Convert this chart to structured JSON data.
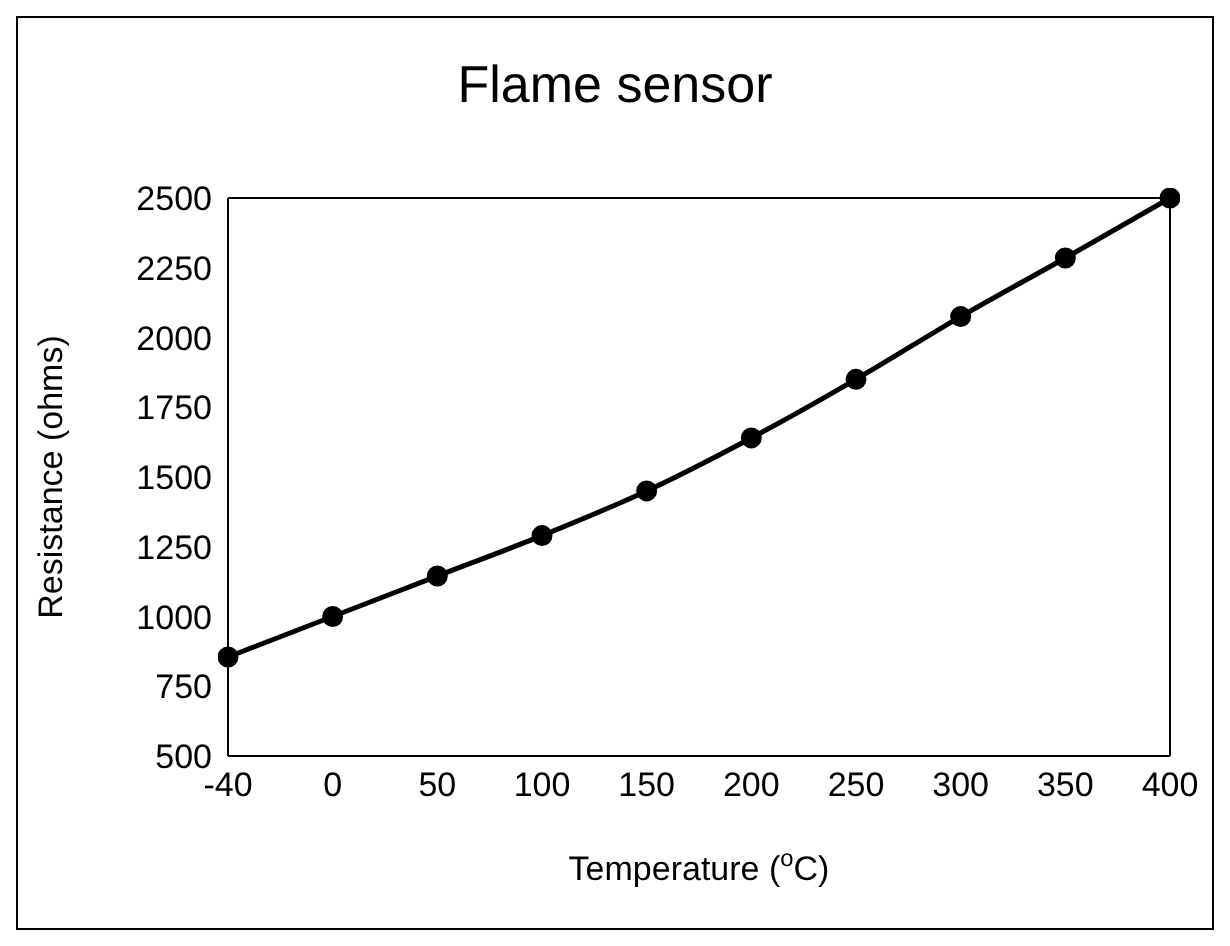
{
  "chart_data": {
    "type": "line",
    "title": "Flame sensor",
    "xlabel": "Temperature ($^{o}$C)",
    "ylabel": "Resistance (ohms)",
    "categories": [
      "-40",
      "0",
      "50",
      "100",
      "150",
      "200",
      "250",
      "300",
      "350",
      "400"
    ],
    "series": [
      {
        "color": "#000000",
        "values": [
          855,
          1000,
          1145,
          1290,
          1450,
          1640,
          1850,
          2075,
          2285,
          2500
        ]
      }
    ],
    "ylim": [
      500,
      2500
    ],
    "yticks": [
      500,
      750,
      1000,
      1250,
      1500,
      1750,
      2000,
      2250,
      2500
    ],
    "grid": false,
    "legend": false,
    "marker": "circle",
    "line_style": "solid"
  }
}
